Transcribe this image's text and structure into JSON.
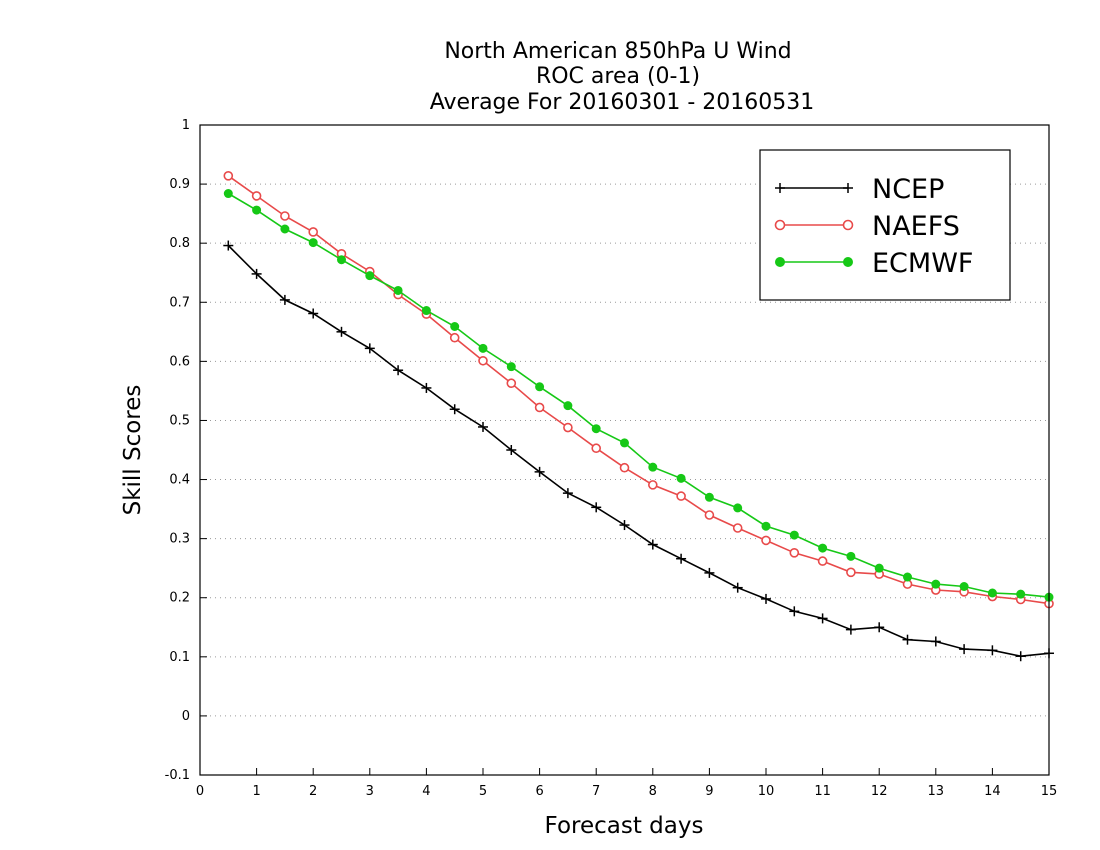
{
  "chart_data": {
    "type": "line",
    "title": [
      "North American 850hPa U Wind",
      "ROC area (0-1)",
      "Average For 20160301 - 20160531"
    ],
    "xlabel": "Forecast days",
    "ylabel": "Skill Scores",
    "xlim": [
      0,
      15
    ],
    "ylim": [
      -0.1,
      1
    ],
    "xticks": [
      0,
      1,
      2,
      3,
      4,
      5,
      6,
      7,
      8,
      9,
      10,
      11,
      12,
      13,
      14,
      15
    ],
    "yticks": [
      -0.1,
      0,
      0.1,
      0.2,
      0.3,
      0.4,
      0.5,
      0.6,
      0.7,
      0.8,
      0.9,
      1
    ],
    "ytick_labels": [
      "-0.1",
      "0",
      "0.1",
      "0.2",
      "0.3",
      "0.4",
      "0.5",
      "0.6",
      "0.7",
      "0.8",
      "0.9",
      "1"
    ],
    "grid": "horizontal dotted",
    "legend_position": "top-right",
    "x": [
      0.5,
      1,
      1.5,
      2,
      2.5,
      3,
      3.5,
      4,
      4.5,
      5,
      5.5,
      6,
      6.5,
      7,
      7.5,
      8,
      8.5,
      9,
      9.5,
      10,
      10.5,
      11,
      11.5,
      12,
      12.5,
      13,
      13.5,
      14,
      14.5,
      15
    ],
    "series": [
      {
        "name": "NCEP",
        "color": "#000000",
        "marker": "plus",
        "values": [
          0.796,
          0.748,
          0.704,
          0.681,
          0.65,
          0.622,
          0.585,
          0.555,
          0.519,
          0.489,
          0.45,
          0.413,
          0.377,
          0.353,
          0.323,
          0.29,
          0.266,
          0.242,
          0.217,
          0.198,
          0.177,
          0.165,
          0.146,
          0.15,
          0.129,
          0.126,
          0.113,
          0.111,
          0.101,
          0.106
        ]
      },
      {
        "name": "NAEFS",
        "color": "#e84a4a",
        "marker": "open-circle",
        "values": [
          0.914,
          0.88,
          0.846,
          0.819,
          0.782,
          0.752,
          0.713,
          0.68,
          0.64,
          0.601,
          0.563,
          0.522,
          0.488,
          0.453,
          0.42,
          0.391,
          0.372,
          0.34,
          0.318,
          0.297,
          0.276,
          0.262,
          0.243,
          0.24,
          0.223,
          0.213,
          0.21,
          0.202,
          0.197,
          0.19
        ]
      },
      {
        "name": "ECMWF",
        "color": "#16c816",
        "marker": "filled-circle",
        "values": [
          0.884,
          0.856,
          0.824,
          0.801,
          0.772,
          0.745,
          0.72,
          0.686,
          0.659,
          0.622,
          0.591,
          0.557,
          0.525,
          0.486,
          0.462,
          0.421,
          0.402,
          0.37,
          0.352,
          0.321,
          0.306,
          0.284,
          0.27,
          0.25,
          0.235,
          0.223,
          0.219,
          0.208,
          0.206,
          0.201
        ]
      }
    ]
  }
}
